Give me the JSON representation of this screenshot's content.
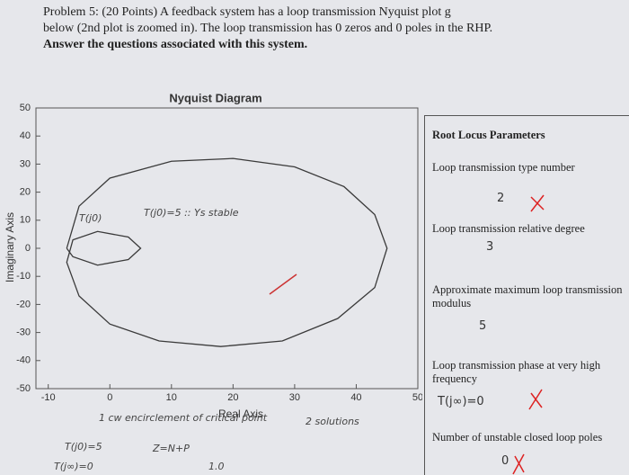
{
  "header": {
    "lines": [
      "Problem 5: (20 Points) A feedback system has a loop transmission Nyquist plot g",
      "below (2nd plot is zoomed in). The loop transmission has 0 zeros and 0 poles in the RHP.",
      "Answer the questions associated with this system."
    ]
  },
  "chart_data": {
    "type": "line",
    "title": "Nyquist Diagram",
    "x_label": "Real Axis",
    "y_label": "Imaginary Axis",
    "xlim": [
      -12,
      50
    ],
    "ylim": [
      -50,
      50
    ],
    "xticks": [
      -10,
      0,
      10,
      20,
      30,
      40,
      50
    ],
    "yticks": [
      -50,
      -40,
      -30,
      -20,
      -10,
      0,
      10,
      20,
      30,
      40,
      50
    ],
    "series": [
      {
        "color": "#3a3a3a",
        "x": [
          -7,
          -5,
          0,
          10,
          20,
          30,
          38,
          43,
          45,
          43,
          37,
          28,
          18,
          8,
          0,
          -5,
          -7,
          -6,
          -2,
          3,
          5,
          3,
          -2,
          -6,
          -7
        ],
        "values": [
          0,
          15,
          25,
          31,
          32,
          29,
          22,
          12,
          0,
          -14,
          -25,
          -33,
          -35,
          -33,
          -27,
          -17,
          -5,
          3,
          6,
          4,
          0,
          -4,
          -6,
          -3,
          0
        ]
      }
    ]
  },
  "table": {
    "title": "Root Locus Parameters",
    "rows": [
      {
        "label": "Loop transmission type number",
        "answer": "2"
      },
      {
        "label": "Loop transmission relative degree",
        "answer": "3"
      },
      {
        "label": "Approximate maximum loop transmission modulus",
        "answer": "5"
      },
      {
        "label": "Loop transmission phase at very high frequency",
        "answer": "T(j∞)=0"
      },
      {
        "label": "Number of unstable closed loop poles",
        "answer": "0"
      }
    ]
  },
  "handwriting": [
    "T(j0)",
    "T(j0)=5 :: Ys stable",
    "1 cw encirclement of critical point",
    "2 solutions",
    "T(j0)=5",
    "Z=N+P",
    "T(j∞)=0",
    "1.0"
  ]
}
